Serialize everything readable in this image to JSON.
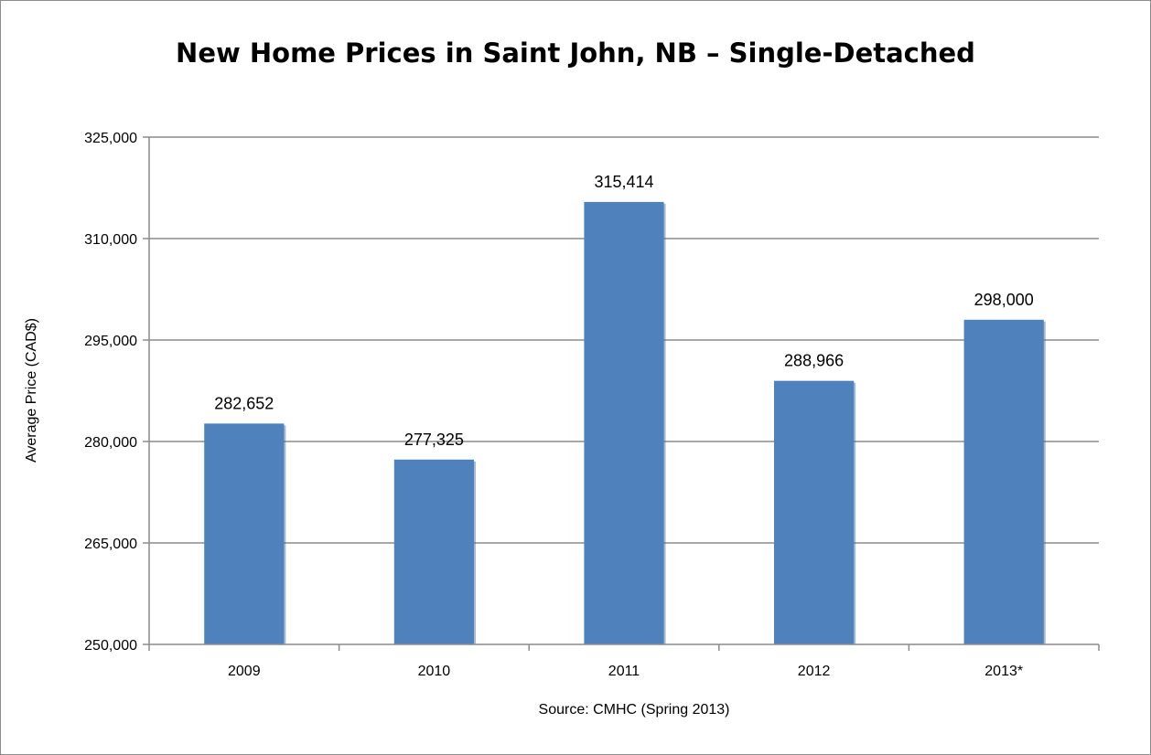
{
  "chart_data": {
    "type": "bar",
    "title": "New Home Prices in Saint John, NB – Single-Detached",
    "xlabel": "",
    "ylabel": "Average Price (CAD$)",
    "categories": [
      "2009",
      "2010",
      "2011",
      "2012",
      "2013*"
    ],
    "values": [
      282652,
      277325,
      315414,
      288966,
      298000
    ],
    "data_labels": [
      "282,652",
      "277,325",
      "315,414",
      "288,966",
      "298,000"
    ],
    "ylim": [
      250000,
      325000
    ],
    "yticks": [
      250000,
      265000,
      280000,
      295000,
      310000,
      325000
    ],
    "ytick_labels": [
      "250,000",
      "265,000",
      "280,000",
      "295,000",
      "310,000",
      "325,000"
    ],
    "grid": true,
    "legend": "none",
    "source_note": "Source: CMHC (Spring 2013)",
    "colors": {
      "bar": "#4f81bd",
      "bar_shadow": "#3b6597",
      "gridline": "#8c8c8c",
      "axis": "#8c8c8c",
      "frame": "#8c8c8c"
    }
  }
}
